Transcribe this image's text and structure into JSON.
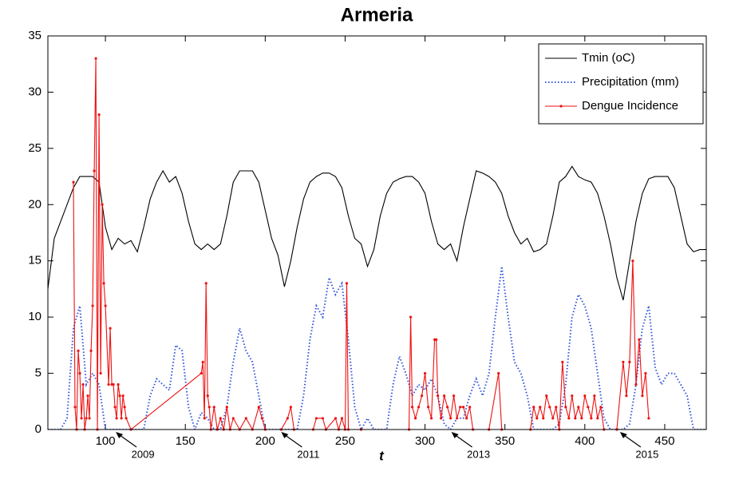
{
  "chart_data": {
    "type": "line",
    "title": "Armeria",
    "xlabel": "t",
    "xlim": [
      64,
      476
    ],
    "ylim": [
      0,
      35
    ],
    "xticks": [
      100,
      150,
      200,
      250,
      300,
      350,
      400,
      450
    ],
    "yticks": [
      0,
      5,
      10,
      15,
      20,
      25,
      30,
      35
    ],
    "legend": "upper right",
    "annotations": [
      {
        "text": "2009",
        "x": 106.5
      },
      {
        "text": "2011",
        "x": 210
      },
      {
        "text": "2013",
        "x": 316.5
      },
      {
        "text": "2015",
        "x": 422
      }
    ],
    "series": [
      {
        "name": "Tmin (oC)",
        "color": "#000000",
        "style": "solid",
        "x": [
          64,
          68,
          72,
          76,
          80,
          84,
          88,
          92,
          96,
          100,
          104,
          108,
          112,
          116,
          120,
          124,
          128,
          132,
          136,
          140,
          144,
          148,
          152,
          156,
          160,
          164,
          168,
          172,
          176,
          180,
          184,
          188,
          192,
          196,
          200,
          204,
          208,
          212,
          216,
          220,
          224,
          228,
          232,
          236,
          240,
          244,
          248,
          252,
          256,
          260,
          264,
          268,
          272,
          276,
          280,
          284,
          288,
          292,
          296,
          300,
          304,
          308,
          312,
          316,
          320,
          324,
          328,
          332,
          336,
          340,
          344,
          348,
          352,
          356,
          360,
          364,
          368,
          372,
          376,
          380,
          384,
          388,
          392,
          396,
          400,
          404,
          408,
          412,
          416,
          420,
          424,
          428,
          432,
          436,
          440,
          444,
          448,
          452,
          456,
          460,
          464,
          468,
          472,
          476
        ],
        "values": [
          12.5,
          17,
          18.5,
          20,
          21.5,
          22.5,
          22.5,
          22.5,
          22,
          18,
          16,
          17,
          16.5,
          16.8,
          15.8,
          18,
          20.5,
          22,
          23,
          22,
          22.5,
          21,
          18.5,
          16.5,
          16,
          16.5,
          16,
          16.5,
          19,
          22,
          23,
          23,
          23,
          22,
          19.5,
          17,
          15.5,
          12.7,
          15,
          18,
          20.5,
          22,
          22.5,
          22.8,
          22.8,
          22.5,
          21.5,
          19,
          17,
          16.5,
          14.5,
          16,
          19,
          21,
          22,
          22.3,
          22.5,
          22.5,
          22,
          21,
          18.5,
          16.5,
          16,
          16.5,
          15,
          18,
          20.5,
          23,
          22.8,
          22.5,
          22,
          21,
          19,
          17.5,
          16.5,
          17,
          15.8,
          16,
          16.5,
          19,
          22,
          22.5,
          23.4,
          22.5,
          22.2,
          22,
          21,
          19,
          16.5,
          13.5,
          11.5,
          15,
          18.5,
          21,
          22.3,
          22.5,
          22.5,
          22.5,
          21.5,
          19,
          16.5,
          15.8,
          16,
          16
        ]
      },
      {
        "name": "Precipitation (mm)",
        "color": "#3355dd",
        "style": "dotted",
        "x": [
          64,
          68,
          72,
          76,
          80,
          84,
          88,
          92,
          96,
          100,
          104,
          108,
          112,
          116,
          120,
          124,
          128,
          132,
          136,
          140,
          144,
          148,
          152,
          156,
          160,
          164,
          168,
          172,
          176,
          180,
          184,
          188,
          192,
          196,
          200,
          204,
          208,
          212,
          216,
          220,
          224,
          228,
          232,
          236,
          240,
          244,
          248,
          252,
          256,
          260,
          264,
          268,
          272,
          276,
          280,
          284,
          288,
          292,
          296,
          300,
          304,
          308,
          312,
          316,
          320,
          324,
          328,
          332,
          336,
          340,
          344,
          348,
          352,
          356,
          360,
          364,
          368,
          372,
          376,
          380,
          384,
          388,
          392,
          396,
          400,
          404,
          408,
          412,
          416,
          420,
          424,
          428,
          432,
          436,
          440,
          444,
          448,
          452,
          456,
          460,
          464,
          468,
          472,
          476
        ],
        "values": [
          0,
          0,
          0,
          1,
          9,
          11,
          4,
          5,
          4,
          0,
          0,
          0,
          0,
          0,
          0,
          0,
          3,
          4.5,
          4,
          3.5,
          7.5,
          7,
          2,
          0,
          1.5,
          1,
          0,
          0,
          2,
          6,
          9,
          7,
          6,
          3,
          0,
          0,
          0,
          0,
          0,
          0,
          3,
          8,
          11,
          10,
          13.5,
          12,
          13,
          8,
          2,
          0,
          1,
          0,
          0,
          0,
          4,
          6.5,
          5,
          3,
          4,
          3.5,
          4.5,
          3,
          0.5,
          0,
          1,
          1,
          3,
          4.5,
          3,
          5,
          10,
          14.5,
          10,
          6,
          5,
          3,
          0,
          0,
          0,
          0,
          0.5,
          4,
          10,
          12,
          11,
          9,
          5,
          1,
          0,
          0,
          0,
          0.5,
          4,
          9,
          11,
          5.5,
          4,
          5,
          5,
          4,
          3,
          0,
          0,
          0
        ]
      },
      {
        "name": "Dengue Incidence",
        "color": "#ee1111",
        "style": "marker",
        "x": [
          80,
          81,
          82,
          83,
          84,
          85,
          86,
          87,
          88,
          89,
          90,
          91,
          92,
          93,
          94,
          95,
          96,
          97,
          98,
          99,
          100,
          102,
          103,
          104,
          105,
          106,
          107,
          108,
          109,
          110,
          111,
          112,
          113,
          116,
          160,
          161,
          162,
          163,
          164,
          165,
          166,
          168,
          170,
          172,
          174,
          176,
          178,
          180,
          184,
          188,
          192,
          196,
          198,
          200,
          210,
          214,
          216,
          218,
          230,
          232,
          236,
          238,
          244,
          246,
          248,
          250,
          251,
          252,
          260,
          290,
          291,
          292,
          294,
          296,
          298,
          300,
          302,
          304,
          306,
          307,
          308,
          310,
          312,
          314,
          316,
          318,
          320,
          322,
          324,
          326,
          328,
          330,
          340,
          346,
          348,
          366,
          368,
          370,
          372,
          374,
          376,
          378,
          380,
          382,
          384,
          386,
          388,
          390,
          392,
          394,
          396,
          398,
          400,
          402,
          404,
          406,
          408,
          410,
          412,
          420,
          424,
          426,
          428,
          430,
          432,
          434,
          436,
          438,
          440
        ],
        "values": [
          22,
          2,
          0,
          7,
          5,
          1,
          4,
          0,
          1,
          3,
          1,
          7,
          11,
          23,
          33,
          0,
          28,
          5,
          20,
          13,
          11,
          4,
          9,
          4,
          4,
          2,
          1,
          4,
          3,
          1,
          3,
          2,
          1,
          0,
          5,
          6,
          1,
          13,
          3,
          2,
          0,
          2,
          0,
          1,
          0,
          2,
          0,
          1,
          0,
          1,
          0,
          2,
          1,
          0,
          0,
          1,
          2,
          0,
          0,
          1,
          1,
          0,
          1,
          0,
          1,
          0,
          13,
          0,
          0,
          0,
          10,
          2,
          1,
          2,
          3,
          5,
          2,
          1,
          8,
          8,
          3,
          1,
          3,
          2,
          1,
          3,
          1,
          2,
          2,
          1,
          2,
          0,
          0,
          5,
          0,
          0,
          2,
          1,
          2,
          1,
          3,
          2,
          1,
          2,
          0,
          6,
          2,
          1,
          3,
          1,
          2,
          1,
          3,
          2,
          1,
          3,
          1,
          2,
          0,
          0,
          6,
          3,
          6,
          15,
          4,
          8,
          3,
          5,
          1
        ]
      }
    ]
  }
}
